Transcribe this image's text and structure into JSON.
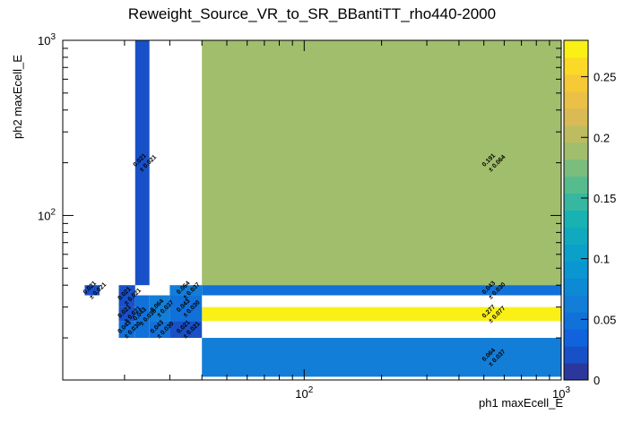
{
  "chart_data": {
    "type": "heatmap",
    "title": "Reweight_Source_VR_to_SR_BBantiTT_rho440-2000",
    "xlabel": "ph1 maxEcell_E",
    "ylabel": "ph2 maxEcell_E",
    "x_scale": "log",
    "y_scale": "log",
    "xlim": [
      11.5,
      1000
    ],
    "ylim": [
      11.5,
      1000
    ],
    "x_tick_labels": [
      "10^2",
      "10^3"
    ],
    "y_tick_labels": [
      "10^2",
      "10^3"
    ],
    "colorbar": {
      "zlim": [
        0,
        0.28
      ],
      "tick_labels": [
        "0",
        "0.05",
        "0.1",
        "0.15",
        "0.2",
        "0.25"
      ],
      "tick_values": [
        0,
        0.05,
        0.1,
        0.15,
        0.2,
        0.25
      ]
    },
    "cells": [
      {
        "x0": 14,
        "x1": 16,
        "y0": 35,
        "y1": 40,
        "value": 0.021,
        "error": 0.021
      },
      {
        "x0": 19,
        "x1": 22,
        "y0": 30,
        "y1": 40,
        "value": 0.021,
        "error": 0.021
      },
      {
        "x0": 22,
        "x1": 25,
        "y0": 40,
        "y1": 1000,
        "value": 0.021,
        "error": 0.021
      },
      {
        "x0": 30,
        "x1": 40,
        "y0": 35,
        "y1": 40,
        "value": 0.064,
        "error": 0.037
      },
      {
        "x0": 40,
        "x1": 1000,
        "y0": 40,
        "y1": 1000,
        "value": 0.191,
        "error": 0.064
      },
      {
        "x0": 40,
        "x1": 1000,
        "y0": 35,
        "y1": 40,
        "value": 0.043,
        "error": 0.03
      },
      {
        "x0": 40,
        "x1": 1000,
        "y0": 25,
        "y1": 30,
        "value": 0.277,
        "error": 0.077
      },
      {
        "x0": 40,
        "x1": 1000,
        "y0": 12,
        "y1": 20,
        "value": 0.064,
        "error": 0.037
      },
      {
        "x0": 19,
        "x1": 22,
        "y0": 25,
        "y1": 30,
        "value": 0.021,
        "error": 0.021
      },
      {
        "x0": 19,
        "x1": 22,
        "y0": 20,
        "y1": 25,
        "value": 0.043,
        "error": 0.03
      },
      {
        "x0": 22,
        "x1": 25,
        "y0": 20,
        "y1": 35,
        "value": 0.043,
        "error": 0.03
      },
      {
        "x0": 25,
        "x1": 30,
        "y0": 25,
        "y1": 35,
        "value": 0.064,
        "error": 0.037
      },
      {
        "x0": 25,
        "x1": 30,
        "y0": 20,
        "y1": 25,
        "value": 0.043,
        "error": 0.03
      },
      {
        "x0": 30,
        "x1": 40,
        "y0": 25,
        "y1": 35,
        "value": 0.043,
        "error": 0.03
      },
      {
        "x0": 30,
        "x1": 40,
        "y0": 20,
        "y1": 25,
        "value": 0.021,
        "error": 0.021
      }
    ]
  }
}
